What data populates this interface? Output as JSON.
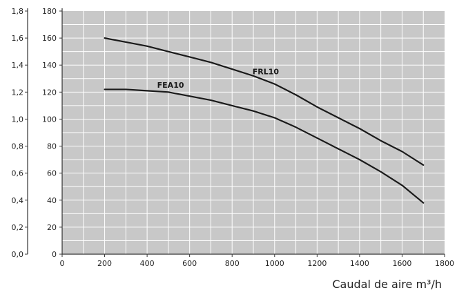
{
  "chart_data": {
    "type": "line",
    "xlabel": "Caudal de aire m³/h",
    "xlim": [
      0,
      1800
    ],
    "x_ticks": [
      0,
      200,
      400,
      600,
      800,
      1000,
      1200,
      1400,
      1600,
      1800
    ],
    "ylim": [
      0,
      180
    ],
    "y_ticks": [
      0,
      20,
      40,
      60,
      80,
      100,
      120,
      140,
      160,
      180
    ],
    "y2_ticks": [
      "0,0",
      "0,2",
      "0,4",
      "0,6",
      "0,8",
      "1,0",
      "1,2",
      "1,4",
      "1,6",
      "1,8"
    ],
    "grid": true,
    "colors": {
      "plot_background": "#c8c8c8",
      "grid": "#ffffff",
      "series": "#1a1a1a"
    },
    "series": [
      {
        "name": "FRL10",
        "x": [
          200,
          300,
          400,
          500,
          600,
          700,
          800,
          900,
          1000,
          1100,
          1200,
          1300,
          1400,
          1500,
          1600,
          1700
        ],
        "y": [
          160,
          157,
          154,
          150,
          146,
          142,
          137,
          132,
          126,
          118,
          109,
          101,
          93,
          84,
          76,
          66
        ]
      },
      {
        "name": "FEA10",
        "x": [
          200,
          300,
          400,
          500,
          600,
          700,
          800,
          900,
          1000,
          1100,
          1200,
          1300,
          1400,
          1500,
          1600,
          1700
        ],
        "y": [
          122,
          122,
          121,
          120,
          117,
          114,
          110,
          106,
          101,
          94,
          86,
          78,
          70,
          61,
          51,
          38
        ]
      }
    ]
  }
}
